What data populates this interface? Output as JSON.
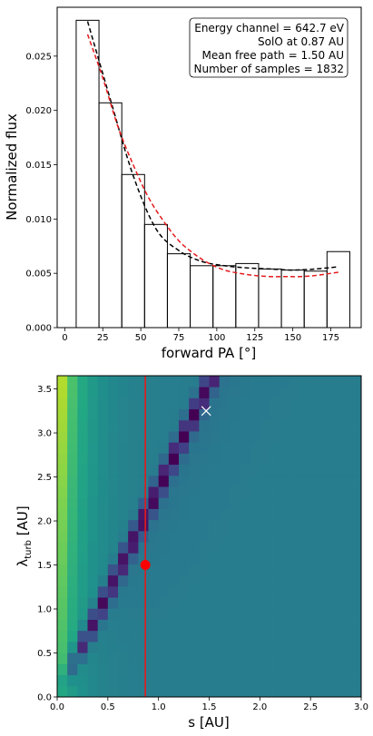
{
  "chart_data": [
    {
      "type": "bar",
      "subtype": "histogram",
      "xlabel": "forward PA [°]",
      "ylabel": "Normalized flux",
      "xlim": [
        -5,
        195
      ],
      "ylim": [
        0,
        0.0295
      ],
      "xticks": [
        0,
        25,
        50,
        75,
        100,
        125,
        150,
        175
      ],
      "yticks": [
        0.0,
        0.005,
        0.01,
        0.015,
        0.02,
        0.025
      ],
      "ytick_labels": [
        "0.000",
        "0.005",
        "0.010",
        "0.015",
        "0.020",
        "0.025"
      ],
      "bins": [
        {
          "x0": 7.5,
          "x1": 22.5,
          "value": 0.0283
        },
        {
          "x0": 22.5,
          "x1": 37.5,
          "value": 0.0207
        },
        {
          "x0": 37.5,
          "x1": 52.5,
          "value": 0.0141
        },
        {
          "x0": 52.5,
          "x1": 67.5,
          "value": 0.0095
        },
        {
          "x0": 67.5,
          "x1": 82.5,
          "value": 0.0068
        },
        {
          "x0": 82.5,
          "x1": 97.5,
          "value": 0.0057
        },
        {
          "x0": 97.5,
          "x1": 112.5,
          "value": 0.0057
        },
        {
          "x0": 112.5,
          "x1": 127.5,
          "value": 0.0059
        },
        {
          "x0": 127.5,
          "x1": 142.5,
          "value": 0.0054
        },
        {
          "x0": 142.5,
          "x1": 157.5,
          "value": 0.0053
        },
        {
          "x0": 157.5,
          "x1": 172.5,
          "value": 0.0052
        },
        {
          "x0": 172.5,
          "x1": 187.5,
          "value": 0.007
        }
      ],
      "series": [
        {
          "style": "dashed",
          "color": "#000000",
          "x": [
            15,
            30,
            45,
            60,
            75,
            90,
            105,
            120,
            135,
            150,
            165,
            180
          ],
          "y": [
            0.0282,
            0.021,
            0.014,
            0.0091,
            0.0071,
            0.0061,
            0.0057,
            0.0055,
            0.0054,
            0.0053,
            0.0054,
            0.0056
          ]
        },
        {
          "style": "dashed",
          "color": "#e41a1c",
          "x": [
            15,
            25,
            35,
            45,
            55,
            65,
            75,
            85,
            95,
            105,
            115,
            125,
            135,
            145,
            155,
            165,
            180
          ],
          "y": [
            0.027,
            0.023,
            0.0185,
            0.015,
            0.012,
            0.0098,
            0.008,
            0.0068,
            0.0059,
            0.0053,
            0.005,
            0.0048,
            0.0047,
            0.0047,
            0.0047,
            0.0048,
            0.0051
          ]
        }
      ],
      "annotation": [
        "Energy channel = 642.7 eV",
        "SolO at 0.87 AU",
        "Mean free path = 1.50 AU",
        "Number of samples = 1832"
      ]
    },
    {
      "type": "heatmap",
      "xlabel": "s [AU]",
      "ylabel": "λ_turb [AU]",
      "xlim": [
        0.0,
        3.0
      ],
      "ylim": [
        0.0,
        3.65
      ],
      "xticks": [
        0.0,
        0.5,
        1.0,
        1.5,
        2.0,
        2.5,
        3.0
      ],
      "xtick_labels": [
        "0.0",
        "0.5",
        "1.0",
        "1.5",
        "2.0",
        "2.5",
        "3.0"
      ],
      "yticks": [
        0.0,
        0.5,
        1.0,
        1.5,
        2.0,
        2.5,
        3.0,
        3.5
      ],
      "ytick_labels": [
        "0.0",
        "0.5",
        "1.0",
        "1.5",
        "2.0",
        "2.5",
        "3.0",
        "3.5"
      ],
      "colormap": "viridis",
      "vertical_line": {
        "x": 0.87,
        "color": "#e41a1c"
      },
      "red_marker": {
        "x": 0.87,
        "y": 1.5,
        "color": "#ff0000"
      },
      "minimum_marker": {
        "x": 1.47,
        "y": 3.25,
        "symbol": "x",
        "color": "#ffffff"
      }
    }
  ]
}
